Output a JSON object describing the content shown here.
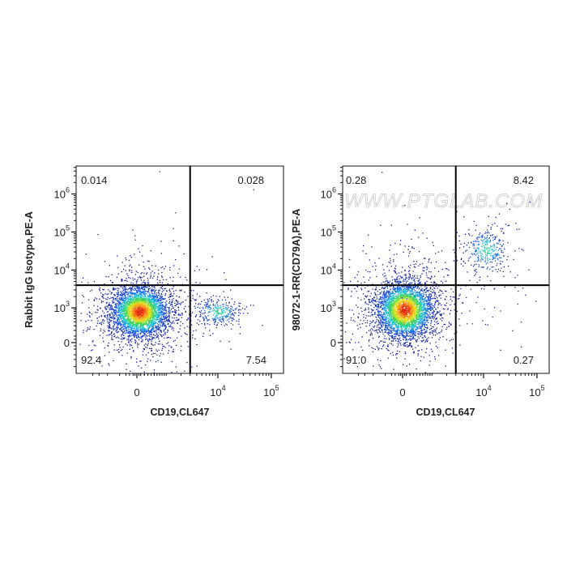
{
  "watermark": "WWW.PTGLAB.COM",
  "chart_data": [
    {
      "type": "scatter",
      "subtype": "flow-cytometry-density-dot-plot",
      "xlabel": "CD19,CL647",
      "ylabel": "Rabbit IgG Isotype,PE-A",
      "x_scale": "biexponential",
      "y_scale": "biexponential",
      "x_ticks": [
        {
          "value": 0,
          "label": "0"
        },
        {
          "value": 10000,
          "base": "10",
          "exp": "4"
        },
        {
          "value": 100000,
          "base": "10",
          "exp": "5"
        }
      ],
      "y_ticks": [
        {
          "value": 0,
          "label": "0"
        },
        {
          "value": 1000,
          "base": "10",
          "exp": "3"
        },
        {
          "value": 10000,
          "base": "10",
          "exp": "4"
        },
        {
          "value": 100000,
          "base": "10",
          "exp": "5"
        },
        {
          "value": 1000000,
          "base": "10",
          "exp": "6"
        }
      ],
      "gate": {
        "x": 3000,
        "y": 4000
      },
      "quadrants": {
        "upper_left": "0.014",
        "upper_right": "0.028",
        "lower_left": "92.4",
        "lower_right": "7.54"
      },
      "populations": [
        {
          "x": 60,
          "y": 800,
          "percent": 92.4
        },
        {
          "x": 10000,
          "y": 800,
          "percent": 7.54
        },
        {
          "x": 300,
          "y": 30000,
          "percent": 0.014
        },
        {
          "x": 15000,
          "y": 80000,
          "percent": 0.028
        }
      ],
      "color_scale": "density (blue-green-yellow-red)"
    },
    {
      "type": "scatter",
      "subtype": "flow-cytometry-density-dot-plot",
      "xlabel": "CD19,CL647",
      "ylabel": "98072-1-RR(CD79A),PE-A",
      "x_scale": "biexponential",
      "y_scale": "biexponential",
      "x_ticks": [
        {
          "value": 0,
          "label": "0"
        },
        {
          "value": 10000,
          "base": "10",
          "exp": "4"
        },
        {
          "value": 100000,
          "base": "10",
          "exp": "5"
        }
      ],
      "y_ticks": [
        {
          "value": 0,
          "label": "0"
        },
        {
          "value": 1000,
          "base": "10",
          "exp": "3"
        },
        {
          "value": 10000,
          "base": "10",
          "exp": "4"
        },
        {
          "value": 100000,
          "base": "10",
          "exp": "5"
        },
        {
          "value": 1000000,
          "base": "10",
          "exp": "6"
        }
      ],
      "gate": {
        "x": 3000,
        "y": 4000
      },
      "quadrants": {
        "upper_left": "0.28",
        "upper_right": "8.42",
        "lower_left": "91.0",
        "lower_right": "0.27"
      },
      "populations": [
        {
          "x": 50,
          "y": 900,
          "percent": 91.0
        },
        {
          "x": 11000,
          "y": 35000,
          "percent": 8.42
        },
        {
          "x": 100,
          "y": 10000,
          "percent": 0.28
        },
        {
          "x": 15000,
          "y": 1500,
          "percent": 0.27
        }
      ],
      "color_scale": "density (blue-green-yellow-red)"
    }
  ]
}
